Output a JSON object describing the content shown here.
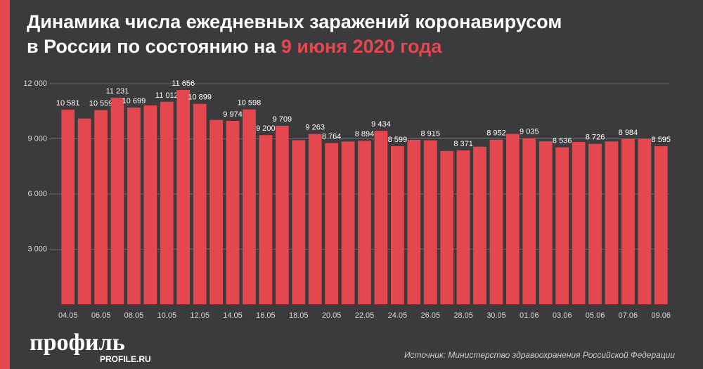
{
  "chart_data": {
    "type": "bar",
    "title_line1": "Динамика числа ежедневных заражений коронавирусом",
    "title_line2": "в России по состоянию на",
    "title_highlight": "9 июня 2020 года",
    "categories": [
      "04.05",
      null,
      "06.05",
      null,
      "08.05",
      null,
      "10.05",
      null,
      "12.05",
      null,
      "14.05",
      null,
      "16.05",
      null,
      "18.05",
      null,
      "20.05",
      null,
      "22.05",
      null,
      "24.05",
      null,
      "26.05",
      null,
      "28.05",
      null,
      "30.05",
      null,
      "01.06",
      null,
      "03.06",
      null,
      "05.06",
      null,
      "07.06",
      null,
      "09.06"
    ],
    "values": [
      10581,
      10102,
      10559,
      11231,
      10699,
      10817,
      11012,
      11656,
      10899,
      10028,
      9974,
      10598,
      9200,
      9709,
      8926,
      9263,
      8764,
      8849,
      8894,
      9434,
      8599,
      8946,
      8915,
      8338,
      8371,
      8572,
      8952,
      9268,
      9035,
      8863,
      8536,
      8831,
      8726,
      8855,
      8984,
      8985,
      8595
    ],
    "value_labels": [
      "10 581",
      null,
      "10 559",
      "11 231",
      "10 699",
      null,
      "11 012",
      "11 656",
      "10 899",
      null,
      "9 974",
      "10 598",
      "9 200",
      "9 709",
      null,
      "9 263",
      "8 764",
      null,
      "8 894",
      "9 434",
      "8 599",
      null,
      "8 915",
      null,
      "8 371",
      null,
      "8 952",
      null,
      "9 035",
      null,
      "8 536",
      null,
      "8 726",
      null,
      "8 984",
      null,
      "8 595"
    ],
    "color": "#e5474e",
    "ylim": [
      0,
      12000
    ],
    "yticks": [
      {
        "value": 3000,
        "label": "3 000"
      },
      {
        "value": 6000,
        "label": "6 000"
      },
      {
        "value": 9000,
        "label": "9 000"
      },
      {
        "value": 12000,
        "label": "12 000"
      }
    ],
    "grid": true,
    "source": "Источник: Министерство здравоохранения Российской Федерации",
    "logo": "профиль",
    "logo_url": "PROFILE.RU"
  }
}
